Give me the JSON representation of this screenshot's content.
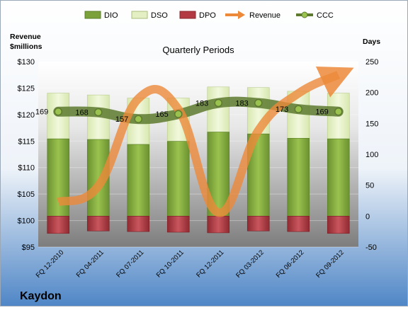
{
  "chart_data": {
    "type": "bar",
    "company": "Kaydon",
    "title": "Quarterly Periods",
    "left_axis_title": [
      "Revenue",
      "$millions"
    ],
    "right_axis_title": "Days",
    "left_ticks": [
      "$95",
      "$100",
      "$105",
      "$110",
      "$115",
      "$120",
      "$125",
      "$130"
    ],
    "left_ylim": [
      95,
      130
    ],
    "right_ticks": [
      "-50",
      "0",
      "50",
      "100",
      "150",
      "200",
      "250"
    ],
    "right_ylim": [
      -50,
      250
    ],
    "categories": [
      "FQ 12-2010",
      "FQ 04-2011",
      "FQ 07-2011",
      "FQ 10-2011",
      "FQ 12-2011",
      "FQ 03-2012",
      "FQ 06-2012",
      "FQ 09-2012"
    ],
    "legend": [
      "DIO",
      "DSO",
      "DPO",
      "Revenue",
      "CCC"
    ],
    "legend_position": "top",
    "series": [
      {
        "name": "DIO",
        "type": "bar",
        "axis": "right",
        "values": [
          125,
          124,
          116,
          121,
          136,
          133,
          126,
          125
        ],
        "color": "#7ba23a"
      },
      {
        "name": "DSO",
        "type": "bar",
        "axis": "right",
        "values": [
          74,
          72,
          75,
          70,
          73,
          75,
          76,
          74
        ],
        "color": "#e4f0c4"
      },
      {
        "name": "DPO",
        "type": "bar",
        "axis": "right",
        "values": [
          -28,
          -24,
          -25,
          -26,
          -27,
          -24,
          -25,
          -28
        ],
        "color": "#b33a42"
      },
      {
        "name": "Revenue",
        "type": "line",
        "axis": "left",
        "values": [
          103.5,
          106.5,
          123.0,
          121.0,
          101.5,
          117.0,
          124.0,
          127.5
        ],
        "color": "#ec8a39"
      },
      {
        "name": "CCC",
        "type": "line",
        "axis": "right",
        "values": [
          169,
          168,
          157,
          165,
          183,
          183,
          173,
          169
        ],
        "color": "#5d7a2f"
      }
    ]
  }
}
